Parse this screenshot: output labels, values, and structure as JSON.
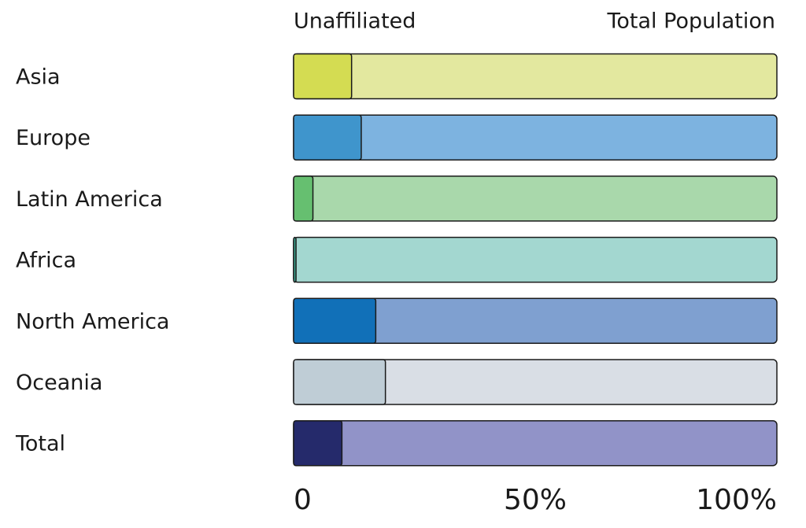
{
  "chart_data": {
    "type": "bar",
    "orientation": "horizontal",
    "categories": [
      "Asia",
      "Europe",
      "Latin America",
      "Africa",
      "North America",
      "Oceania",
      "Total"
    ],
    "series": [
      {
        "name": "Unaffiliated",
        "values": [
          12,
          14,
          4,
          0.5,
          17,
          19,
          10
        ],
        "colors": [
          "#d4dc52",
          "#3f95cc",
          "#66bf70",
          "#3aa590",
          "#1170b8",
          "#bfcdd6",
          "#252a6b"
        ]
      },
      {
        "name": "Total Population",
        "values": [
          100,
          100,
          100,
          100,
          100,
          100,
          100
        ],
        "colors": [
          "#e3e89f",
          "#7db3e0",
          "#a9d8ab",
          "#a3d7d0",
          "#7fa0d0",
          "#d9dee5",
          "#9193c8"
        ]
      }
    ],
    "xlim": [
      0,
      100
    ],
    "xticks": [
      0,
      {
        "value": 50,
        "label": "50%"
      },
      {
        "value": 100,
        "label": "100%"
      }
    ],
    "grid": false
  }
}
